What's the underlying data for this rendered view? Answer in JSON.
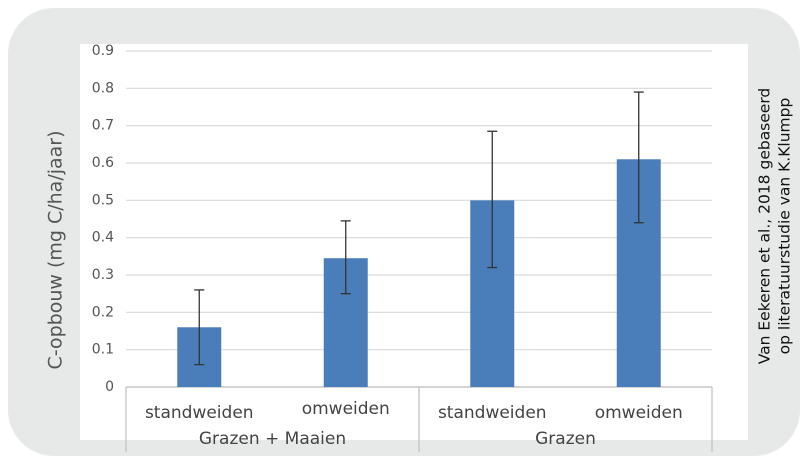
{
  "chart_data": {
    "type": "bar",
    "title": "",
    "ylabel": "C-opbouw (mg C/ha/jaar)",
    "xlabel": "",
    "ylim": [
      0,
      0.9
    ],
    "yticks": [
      "0",
      "0.1",
      "0.2",
      "0.3",
      "0.4",
      "0.5",
      "0.6",
      "0.7",
      "0.8",
      "0.9"
    ],
    "grid": true,
    "categories": [
      "standweiden",
      "omweiden",
      "standweiden",
      "omweiden"
    ],
    "groups": [
      {
        "label": "Grazen + Maaien",
        "span": [
          0,
          1
        ]
      },
      {
        "label": "Grazen",
        "span": [
          2,
          3
        ]
      }
    ],
    "values": [
      0.16,
      0.345,
      0.5,
      0.61
    ],
    "error_high": [
      0.26,
      0.445,
      0.685,
      0.79
    ],
    "error_low": [
      0.06,
      0.25,
      0.32,
      0.44
    ],
    "bar_color": "#4a7ebb",
    "error_color": "#333333",
    "grid_color": "#d9d9d9",
    "source_note": [
      "Van  Eekeren  et  al.,  2018  gebaseerd",
      "op literatuurstudie van K.Klumpp"
    ]
  }
}
